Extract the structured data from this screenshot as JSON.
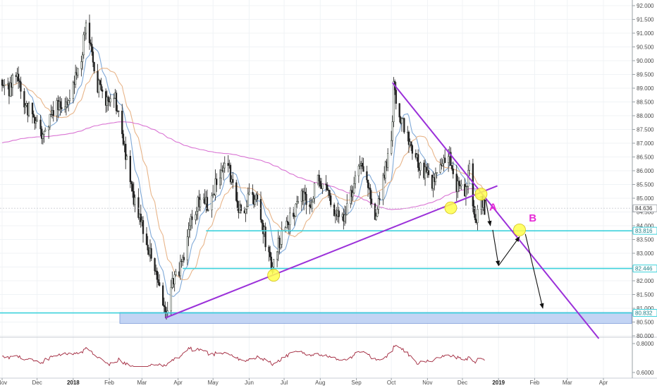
{
  "chart_data": {
    "type": "candlestick",
    "y_axis": {
      "ticks": [
        "92.000",
        "91.500",
        "91.000",
        "90.500",
        "90.000",
        "89.500",
        "89.000",
        "88.500",
        "88.000",
        "87.500",
        "87.000",
        "86.500",
        "86.000",
        "85.500",
        "85.000",
        "84.500",
        "84.000",
        "83.500",
        "83.000",
        "82.500",
        "82.000",
        "81.500",
        "81.000",
        "80.500",
        "80.000"
      ],
      "range": [
        80.0,
        92.1
      ],
      "position": "right"
    },
    "x_axis": {
      "labels": [
        {
          "text": "Nov",
          "date": "2017-11-01"
        },
        {
          "text": "Dec",
          "date": "2017-12-01"
        },
        {
          "text": "2018",
          "date": "2018-01-01",
          "bold": true
        },
        {
          "text": "Feb",
          "date": "2018-02-01"
        },
        {
          "text": "Mar",
          "date": "2018-03-01"
        },
        {
          "text": "Apr",
          "date": "2018-04-01"
        },
        {
          "text": "May",
          "date": "2018-05-01"
        },
        {
          "text": "Jun",
          "date": "2018-06-01"
        },
        {
          "text": "Jul",
          "date": "2018-07-01"
        },
        {
          "text": "Aug",
          "date": "2018-08-01"
        },
        {
          "text": "Sep",
          "date": "2018-09-01"
        },
        {
          "text": "Oct",
          "date": "2018-10-01"
        },
        {
          "text": "Nov",
          "date": "2018-11-01"
        },
        {
          "text": "Dec",
          "date": "2018-12-01"
        },
        {
          "text": "2019",
          "date": "2019-01-01",
          "bold": true
        },
        {
          "text": "Feb",
          "date": "2019-02-01"
        },
        {
          "text": "Mar",
          "date": "2019-03-01"
        },
        {
          "text": "Apr",
          "date": "2019-04-01"
        }
      ]
    },
    "price_path": [
      [
        "2017-11-01",
        89.3
      ],
      [
        "2017-11-06",
        88.9
      ],
      [
        "2017-11-13",
        89.5
      ],
      [
        "2017-11-20",
        88.5
      ],
      [
        "2017-11-27",
        88.0
      ],
      [
        "2017-12-04",
        87.3
      ],
      [
        "2017-12-11",
        87.8
      ],
      [
        "2017-12-18",
        88.5
      ],
      [
        "2017-12-25",
        88.1
      ],
      [
        "2018-01-01",
        89.3
      ],
      [
        "2018-01-08",
        90.0
      ],
      [
        "2018-01-12",
        91.4
      ],
      [
        "2018-01-16",
        90.6
      ],
      [
        "2018-01-22",
        89.1
      ],
      [
        "2018-01-29",
        88.6
      ],
      [
        "2018-02-05",
        88.8
      ],
      [
        "2018-02-12",
        87.5
      ],
      [
        "2018-02-19",
        85.5
      ],
      [
        "2018-02-26",
        84.3
      ],
      [
        "2018-03-05",
        83.5
      ],
      [
        "2018-03-12",
        82.4
      ],
      [
        "2018-03-16",
        82.0
      ],
      [
        "2018-03-21",
        80.8
      ],
      [
        "2018-03-28",
        82.0
      ],
      [
        "2018-04-05",
        82.6
      ],
      [
        "2018-04-12",
        84.2
      ],
      [
        "2018-04-20",
        85.0
      ],
      [
        "2018-04-27",
        84.8
      ],
      [
        "2018-05-04",
        85.6
      ],
      [
        "2018-05-11",
        86.5
      ],
      [
        "2018-05-18",
        85.6
      ],
      [
        "2018-05-25",
        84.3
      ],
      [
        "2018-06-01",
        85.2
      ],
      [
        "2018-06-08",
        84.8
      ],
      [
        "2018-06-15",
        83.5
      ],
      [
        "2018-06-20",
        82.5
      ],
      [
        "2018-06-25",
        83.2
      ],
      [
        "2018-07-02",
        84.1
      ],
      [
        "2018-07-09",
        84.3
      ],
      [
        "2018-07-16",
        85.1
      ],
      [
        "2018-07-23",
        84.7
      ],
      [
        "2018-07-30",
        85.8
      ],
      [
        "2018-08-06",
        85.3
      ],
      [
        "2018-08-13",
        84.5
      ],
      [
        "2018-08-20",
        84.2
      ],
      [
        "2018-08-27",
        85.1
      ],
      [
        "2018-09-03",
        86.2
      ],
      [
        "2018-09-10",
        85.6
      ],
      [
        "2018-09-17",
        84.4
      ],
      [
        "2018-09-24",
        85.8
      ],
      [
        "2018-10-01",
        87.0
      ],
      [
        "2018-10-03",
        89.0
      ],
      [
        "2018-10-08",
        88.1
      ],
      [
        "2018-10-15",
        87.2
      ],
      [
        "2018-10-22",
        86.4
      ],
      [
        "2018-10-29",
        86.0
      ],
      [
        "2018-11-05",
        85.5
      ],
      [
        "2018-11-12",
        86.0
      ],
      [
        "2018-11-19",
        86.6
      ],
      [
        "2018-11-26",
        85.4
      ],
      [
        "2018-12-03",
        85.2
      ],
      [
        "2018-12-07",
        86.0
      ],
      [
        "2018-12-12",
        84.0
      ],
      [
        "2018-12-17",
        84.9
      ],
      [
        "2018-12-20",
        84.6
      ]
    ],
    "annotations": {
      "labels": [
        {
          "text": "A",
          "date": "2018-12-24",
          "price": 84.55
        },
        {
          "text": "B",
          "date": "2019-01-27",
          "price": 84.15
        }
      ],
      "price_tags": [
        {
          "text": "84.636",
          "price": 84.636
        },
        {
          "text": "83.816",
          "price": 83.816
        },
        {
          "text": "82.446",
          "price": 82.446
        },
        {
          "text": "80.832",
          "price": 80.832
        }
      ]
    },
    "oscillator": {
      "ticks": [
        "0.8000",
        "0.6000"
      ],
      "range": [
        0.6,
        1.0
      ]
    }
  }
}
